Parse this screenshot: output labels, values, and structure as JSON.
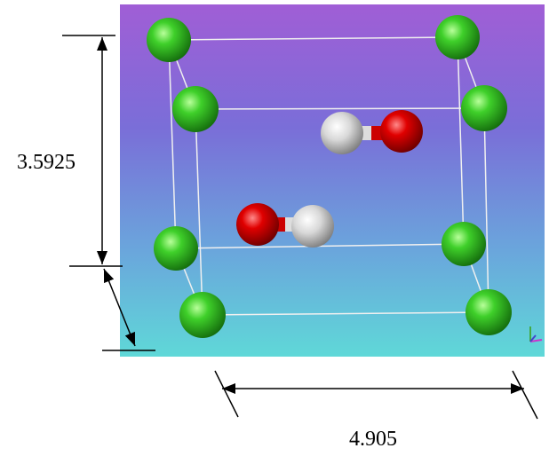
{
  "dimensions": {
    "height": "3.5925",
    "width": "4.905"
  }
}
